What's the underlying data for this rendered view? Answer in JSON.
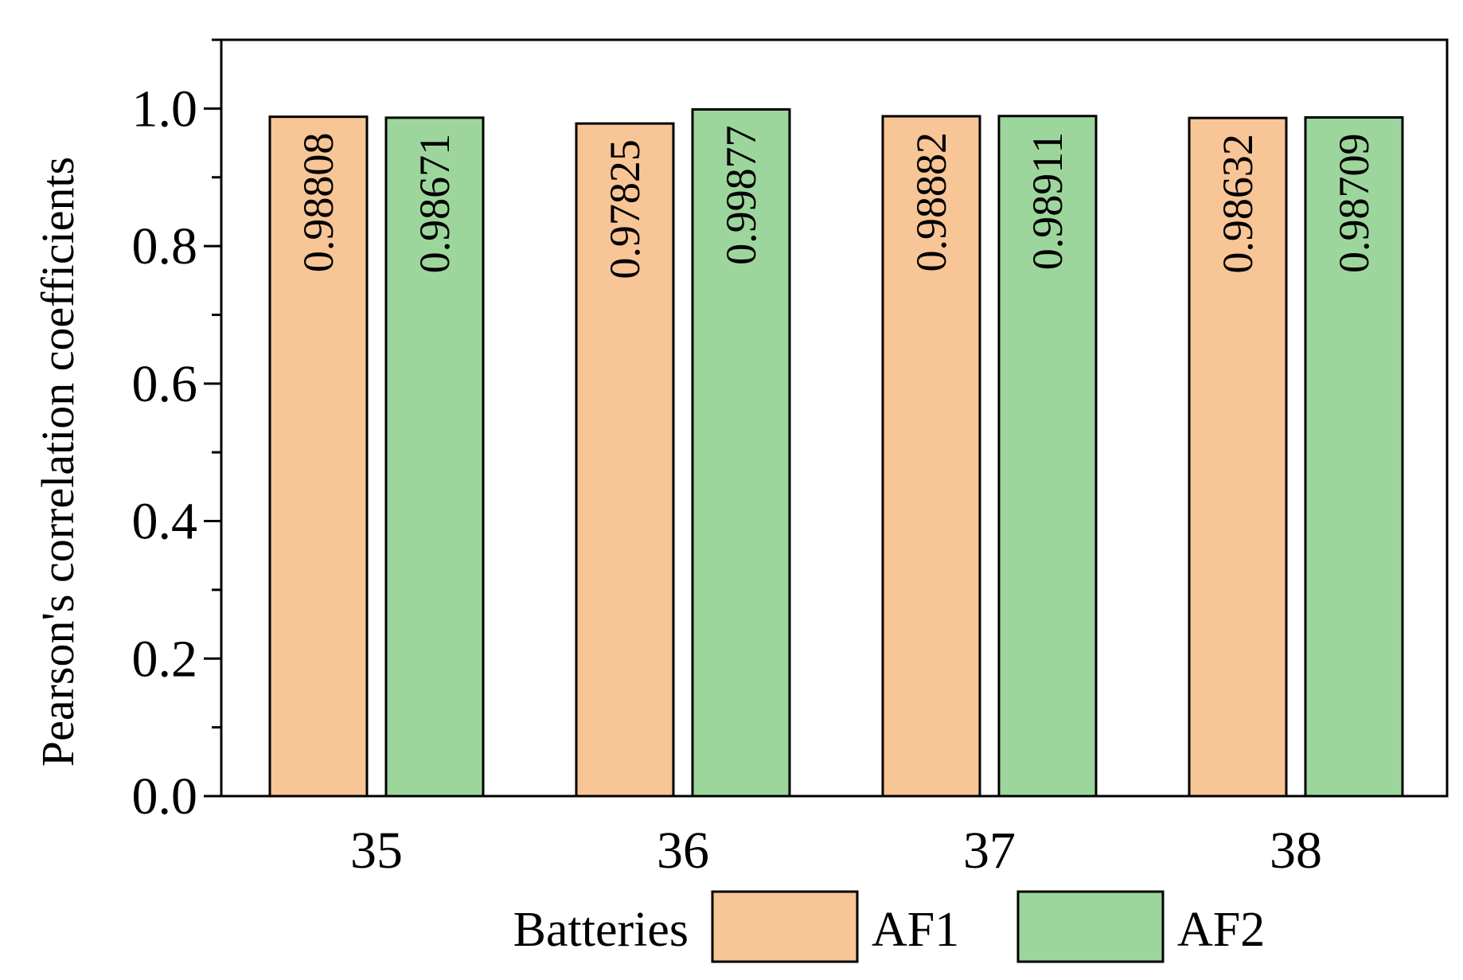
{
  "chart_data": {
    "type": "bar",
    "xlabel": "Batteries",
    "ylabel": "Pearson's correlation coefficients",
    "categories": [
      "35",
      "36",
      "37",
      "38"
    ],
    "ylim": [
      0,
      1.1
    ],
    "yticks": [
      "0.0",
      "0.2",
      "0.4",
      "0.6",
      "0.8",
      "1.0"
    ],
    "grid": false,
    "legend_position": "bottom",
    "series": [
      {
        "name": "AF1",
        "color": "#F8C596",
        "values": [
          0.98808,
          0.97825,
          0.98882,
          0.98632
        ],
        "labels": [
          "0.98808",
          "0.97825",
          "0.98882",
          "0.98632"
        ]
      },
      {
        "name": "AF2",
        "color": "#9DD69C",
        "values": [
          0.98671,
          0.99877,
          0.98911,
          0.98709
        ],
        "labels": [
          "0.98671",
          "0.99877",
          "0.98911",
          "0.98709"
        ]
      }
    ]
  }
}
